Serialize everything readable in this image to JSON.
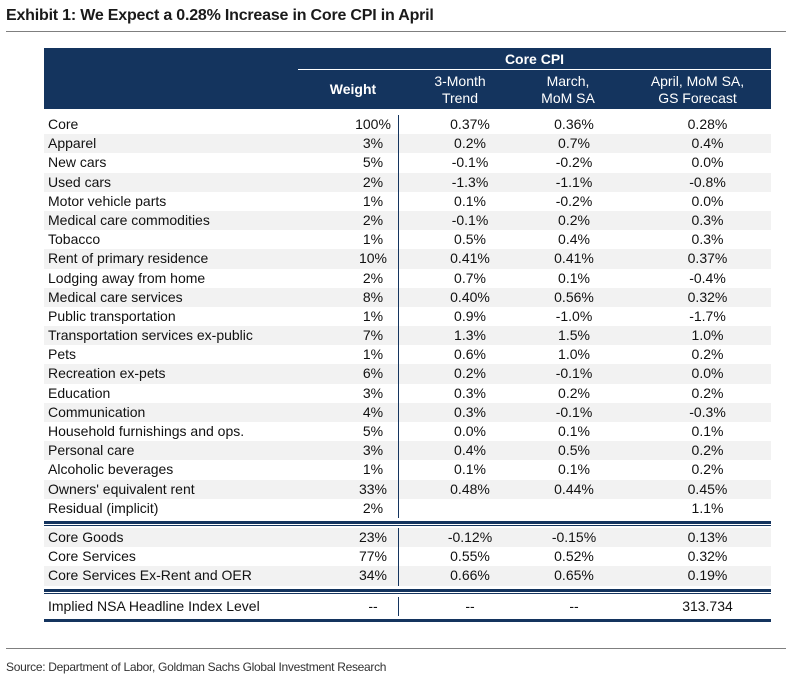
{
  "title": "Exhibit 1: We Expect a 0.28% Increase in Core CPI in April",
  "header": {
    "group": "Core CPI",
    "weight": "Weight",
    "trend": [
      "3-Month",
      "Trend"
    ],
    "march": [
      "March,",
      "MoM SA"
    ],
    "april": [
      "April, MoM SA,",
      "GS Forecast"
    ]
  },
  "rows": [
    {
      "name": "Core",
      "weight": "100%",
      "trend": "0.37%",
      "march": "0.36%",
      "april": "0.28%"
    },
    {
      "name": "Apparel",
      "weight": "3%",
      "trend": "0.2%",
      "march": "0.7%",
      "april": "0.4%"
    },
    {
      "name": "New cars",
      "weight": "5%",
      "trend": "-0.1%",
      "march": "-0.2%",
      "april": "0.0%"
    },
    {
      "name": "Used cars",
      "weight": "2%",
      "trend": "-1.3%",
      "march": "-1.1%",
      "april": "-0.8%"
    },
    {
      "name": "Motor vehicle parts",
      "weight": "1%",
      "trend": "0.1%",
      "march": "-0.2%",
      "april": "0.0%"
    },
    {
      "name": "Medical care commodities",
      "weight": "2%",
      "trend": "-0.1%",
      "march": "0.2%",
      "april": "0.3%"
    },
    {
      "name": "Tobacco",
      "weight": "1%",
      "trend": "0.5%",
      "march": "0.4%",
      "april": "0.3%"
    },
    {
      "name": "Rent of primary residence",
      "weight": "10%",
      "trend": "0.41%",
      "march": "0.41%",
      "april": "0.37%"
    },
    {
      "name": "Lodging away from home",
      "weight": "2%",
      "trend": "0.7%",
      "march": "0.1%",
      "april": "-0.4%"
    },
    {
      "name": "Medical care services",
      "weight": "8%",
      "trend": "0.40%",
      "march": "0.56%",
      "april": "0.32%"
    },
    {
      "name": "Public transportation",
      "weight": "1%",
      "trend": "0.9%",
      "march": "-1.0%",
      "april": "-1.7%"
    },
    {
      "name": "Transportation services ex-public",
      "weight": "7%",
      "trend": "1.3%",
      "march": "1.5%",
      "april": "1.0%"
    },
    {
      "name": "Pets",
      "weight": "1%",
      "trend": "0.6%",
      "march": "1.0%",
      "april": "0.2%"
    },
    {
      "name": "Recreation ex-pets",
      "weight": "6%",
      "trend": "0.2%",
      "march": "-0.1%",
      "april": "0.0%"
    },
    {
      "name": "Education",
      "weight": "3%",
      "trend": "0.3%",
      "march": "0.2%",
      "april": "0.2%"
    },
    {
      "name": "Communication",
      "weight": "4%",
      "trend": "0.3%",
      "march": "-0.1%",
      "april": "-0.3%"
    },
    {
      "name": "Household furnishings and ops.",
      "weight": "5%",
      "trend": "0.0%",
      "march": "0.1%",
      "april": "0.1%"
    },
    {
      "name": "Personal care",
      "weight": "3%",
      "trend": "0.4%",
      "march": "0.5%",
      "april": "0.2%"
    },
    {
      "name": "Alcoholic beverages",
      "weight": "1%",
      "trend": "0.1%",
      "march": "0.1%",
      "april": "0.2%"
    },
    {
      "name": "Owners' equivalent rent",
      "weight": "33%",
      "trend": "0.48%",
      "march": "0.44%",
      "april": "0.45%"
    },
    {
      "name": "Residual (implicit)",
      "weight": "2%",
      "trend": "",
      "march": "",
      "april": "1.1%"
    }
  ],
  "summary_rows": [
    {
      "name": "Core Goods",
      "weight": "23%",
      "trend": "-0.12%",
      "march": "-0.15%",
      "april": "0.13%"
    },
    {
      "name": "Core Services",
      "weight": "77%",
      "trend": "0.55%",
      "march": "0.52%",
      "april": "0.32%"
    },
    {
      "name": "Core Services Ex-Rent and OER",
      "weight": "34%",
      "trend": "0.66%",
      "march": "0.65%",
      "april": "0.19%"
    }
  ],
  "headline_row": {
    "name": "Implied NSA Headline Index Level",
    "weight": "--",
    "trend": "--",
    "march": "--",
    "april": "313.734"
  },
  "source": "Source: Department of Labor, Goldman Sachs Global Investment Research",
  "colors": {
    "header_bg": "#14345e",
    "row_shade": "#f2f2f2",
    "rule": "#14345e"
  }
}
